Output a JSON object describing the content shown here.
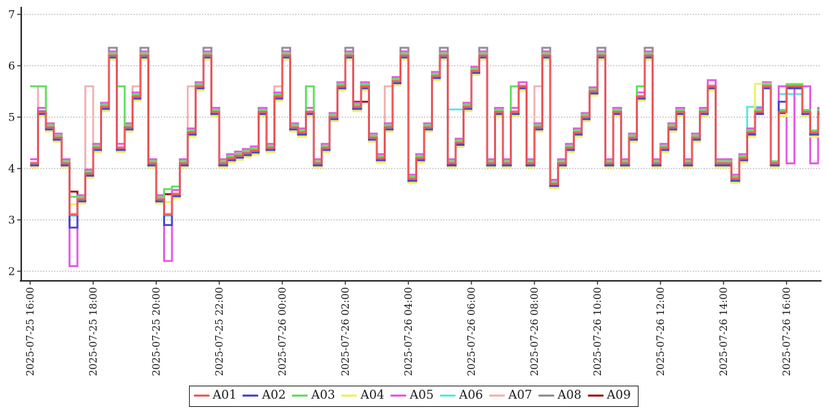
{
  "chart_data": {
    "type": "line",
    "subtype": "step-after",
    "title": "",
    "xlabel": "",
    "ylabel": "",
    "grid": "dashed horizontal at integer y values",
    "legend_position": "bottom-center",
    "y_axis": {
      "min": 2,
      "max": 7,
      "ticks": [
        2,
        3,
        4,
        5,
        6,
        7
      ]
    },
    "x_axis": {
      "tick_minutes": [
        0,
        120,
        240,
        360,
        480,
        600,
        720,
        840,
        960,
        1080,
        1200,
        1320,
        1440
      ],
      "tick_labels": [
        "2025-07-25 16:00",
        "2025-07-25 18:00",
        "2025-07-25 20:00",
        "2025-07-25 22:00",
        "2025-07-26 00:00",
        "2025-07-26 02:00",
        "2025-07-26 04:00",
        "2025-07-26 06:00",
        "2025-07-26 08:00",
        "2025-07-26 10:00",
        "2025-07-26 12:00",
        "2025-07-26 14:00",
        "2025-07-26 16:00"
      ],
      "range_minutes": [
        0,
        1500
      ]
    },
    "x_minutes": {
      "start": 0,
      "step": 15,
      "count": 101
    },
    "base_values": [
      4.1,
      5.1,
      4.8,
      4.6,
      4.1,
      3.1,
      3.4,
      3.9,
      4.4,
      5.2,
      6.2,
      4.4,
      4.8,
      5.4,
      6.2,
      4.1,
      3.4,
      3.1,
      3.5,
      4.1,
      4.7,
      5.6,
      6.2,
      5.1,
      4.1,
      4.2,
      4.25,
      4.3,
      4.35,
      5.1,
      4.4,
      5.4,
      6.2,
      4.8,
      4.7,
      5.1,
      4.1,
      4.4,
      5.0,
      5.6,
      6.2,
      5.2,
      5.6,
      4.6,
      4.2,
      4.8,
      5.7,
      6.2,
      3.8,
      4.2,
      4.8,
      5.8,
      6.2,
      4.1,
      4.5,
      5.2,
      5.9,
      6.2,
      4.1,
      5.1,
      4.1,
      5.1,
      5.6,
      4.1,
      4.8,
      6.2,
      3.7,
      4.1,
      4.4,
      4.7,
      5.0,
      5.5,
      6.2,
      4.1,
      5.1,
      4.1,
      4.6,
      5.4,
      6.2,
      4.1,
      4.4,
      4.8,
      5.1,
      4.1,
      4.6,
      5.1,
      5.6,
      4.1,
      4.1,
      3.8,
      4.2,
      4.7,
      5.1,
      5.6,
      4.1,
      5.1,
      5.6,
      5.6,
      5.1,
      4.7,
      5.1
    ],
    "series": [
      {
        "name": "A01",
        "color": "#ef5858",
        "offset": 0,
        "overrides": {}
      },
      {
        "name": "A02",
        "color": "#4747cd",
        "offset": -0.04,
        "overrides": {
          "5": 2.85,
          "17": 2.9,
          "95": 5.3
        }
      },
      {
        "name": "A03",
        "color": "#5ce05c",
        "offset": 0.04,
        "overrides": {
          "0": 5.6,
          "1": 5.6,
          "5": 3.45,
          "11": 5.6,
          "17": 3.6,
          "18": 3.65,
          "35": 5.6,
          "61": 5.6,
          "62": 5.6,
          "77": 5.6,
          "86": 5.6
        }
      },
      {
        "name": "A04",
        "color": "#f0f058",
        "offset": -0.08,
        "overrides": {
          "5": 3.3,
          "17": 3.35,
          "92": 5.65,
          "93": 5.65,
          "96": 5.65,
          "97": 5.65
        }
      },
      {
        "name": "A05",
        "color": "#e358e3",
        "offset": 0.08,
        "overrides": {
          "5": 2.1,
          "17": 2.2,
          "86": 5.72,
          "94": 4.1,
          "95": 5.6,
          "96": 4.1,
          "97": 5.6,
          "98": 5.6,
          "99": 4.1
        }
      },
      {
        "name": "A06",
        "color": "#5fe3e3",
        "offset": -0.02,
        "overrides": {
          "53": 5.15,
          "54": 5.15,
          "91": 5.2,
          "92": 5.2,
          "95": 5.45,
          "96": 5.45,
          "97": 5.45
        }
      },
      {
        "name": "A07",
        "color": "#f2b1b1",
        "offset": 0.02,
        "overrides": {
          "1": 5.6,
          "7": 5.6,
          "13": 5.6,
          "20": 5.6,
          "31": 5.6,
          "45": 5.6,
          "64": 5.6
        }
      },
      {
        "name": "A08",
        "color": "#8f8f8f",
        "offset": 0.02,
        "overrides": {
          "10": 6.35,
          "14": 6.35,
          "22": 6.35,
          "32": 6.35,
          "40": 6.35,
          "47": 6.35,
          "52": 6.35,
          "57": 6.35,
          "65": 6.35,
          "72": 6.35,
          "78": 6.35
        }
      },
      {
        "name": "A09",
        "color": "#a31212",
        "offset": -0.02,
        "overrides": {
          "5": 3.55,
          "17": 3.5,
          "41": 5.3,
          "42": 5.3
        }
      }
    ],
    "colors": {
      "axis": "#2a2a2a",
      "gridline": "#8c8c8c",
      "tick_label": "#1a1a1a"
    }
  }
}
